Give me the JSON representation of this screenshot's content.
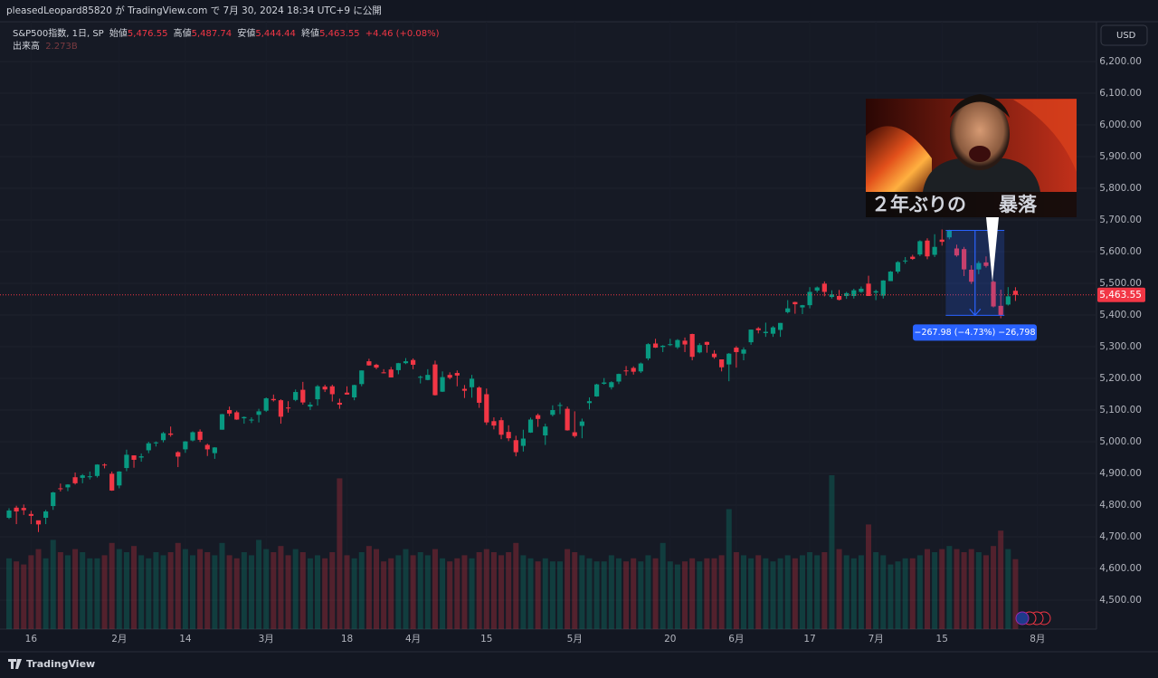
{
  "header": {
    "published": "pleasedLeopard85820 が TradingView.com で 7月 30, 2024 18:34 UTC+9 に公開"
  },
  "legend": {
    "symbol": "S&P500指数, 1日, SP",
    "open_label": "始値",
    "open": "5,476.55",
    "high_label": "高値",
    "high": "5,487.74",
    "low_label": "安値",
    "low": "5,444.44",
    "close_label": "終値",
    "close": "5,463.55",
    "change": "+4.46 (+0.08%)",
    "volume_label": "出来高"
  },
  "currency": "USD",
  "footer": {
    "brand": "TradingView"
  },
  "chart_data": {
    "type": "candlestick",
    "up_color": "#089981",
    "down_color": "#f23645",
    "grid": true,
    "ylim": [
      4408.6,
      6325.7
    ],
    "yticks": [
      {
        "value": 4500,
        "label": "4,500.00"
      },
      {
        "value": 4600,
        "label": "4,600.00"
      },
      {
        "value": 4700,
        "label": "4,700.00"
      },
      {
        "value": 4800,
        "label": "4,800.00"
      },
      {
        "value": 4900,
        "label": "4,900.00"
      },
      {
        "value": 5000,
        "label": "5,000.00"
      },
      {
        "value": 5100,
        "label": "5,100.00"
      },
      {
        "value": 5200,
        "label": "5,200.00"
      },
      {
        "value": 5300,
        "label": "5,300.00"
      },
      {
        "value": 5400,
        "label": "5,400.00"
      },
      {
        "value": 5500,
        "label": "5,500.00"
      },
      {
        "value": 5600,
        "label": "5,600.00"
      },
      {
        "value": 5700,
        "label": "5,700.00"
      },
      {
        "value": 5800,
        "label": "5,800.00"
      },
      {
        "value": 5900,
        "label": "5,900.00"
      },
      {
        "value": 6000,
        "label": "6,000.00"
      },
      {
        "value": 6100,
        "label": "6,100.00"
      },
      {
        "value": 6200,
        "label": "6,200.00"
      }
    ],
    "last_price": {
      "value": 5463.55,
      "label": "5,463.55"
    },
    "categories": [
      null,
      null,
      null,
      "16",
      null,
      null,
      null,
      null,
      null,
      null,
      null,
      null,
      null,
      null,
      null,
      "2月",
      null,
      null,
      null,
      null,
      null,
      null,
      null,
      null,
      "14",
      null,
      null,
      null,
      null,
      null,
      null,
      null,
      null,
      null,
      null,
      "3月",
      null,
      null,
      null,
      null,
      null,
      null,
      null,
      null,
      null,
      null,
      "18",
      null,
      null,
      null,
      null,
      null,
      null,
      null,
      null,
      "4月",
      null,
      null,
      null,
      null,
      null,
      null,
      null,
      null,
      null,
      "15",
      null,
      null,
      null,
      null,
      null,
      null,
      null,
      null,
      null,
      null,
      null,
      "5月",
      null,
      null,
      null,
      null,
      null,
      null,
      null,
      null,
      null,
      null,
      null,
      null,
      "20",
      null,
      null,
      null,
      null,
      null,
      null,
      null,
      null,
      "6月",
      null,
      null,
      null,
      null,
      null,
      null,
      null,
      null,
      null,
      "17",
      null,
      null,
      null,
      null,
      null,
      null,
      null,
      null,
      "7月",
      null,
      null,
      null,
      null,
      null,
      null,
      null,
      null,
      "15",
      null,
      null,
      null,
      null,
      null,
      null,
      null,
      null,
      null,
      null,
      null,
      null,
      "8月"
    ],
    "open": [
      4760,
      4792,
      4791,
      4772,
      4752,
      4760,
      4797,
      4853,
      4856,
      4888,
      4886,
      4888,
      4892,
      4928,
      4899,
      4862,
      4917,
      4957,
      4950,
      4973,
      4996,
      5005,
      5026,
      4967,
      4976,
      5004,
      5032,
      4990,
      4964,
      5038,
      5100,
      5093,
      5074,
      5067,
      5085,
      5098,
      5135,
      5131,
      5108,
      5132,
      5164,
      5111,
      5134,
      5174,
      5175,
      5123,
      5155,
      5140,
      5182,
      5254,
      5243,
      5219,
      5228,
      5226,
      5248,
      5258,
      5204,
      5195,
      5244,
      5158,
      5211,
      5217,
      5167,
      5172,
      5171,
      5150,
      5065,
      5068,
      5031,
      5005,
      4987,
      5029,
      5084,
      5020,
      5085,
      5114,
      5104,
      5030,
      5050,
      5122,
      5143,
      5183,
      5172,
      5190,
      5225,
      5233,
      5222,
      5263,
      5310,
      5299,
      5305,
      5298,
      5319,
      5340,
      5282,
      5315,
      5278,
      5260,
      5244,
      5297,
      5278,
      5314,
      5358,
      5343,
      5341,
      5353,
      5409,
      5441,
      5424,
      5431,
      5477,
      5499,
      5457,
      5460,
      5460,
      5460,
      5473,
      5499,
      5471,
      5461,
      5507,
      5537,
      5571,
      5584,
      5591,
      5635,
      5590,
      5638,
      5645,
      5610,
      5608,
      5543,
      5544,
      5566,
      5505,
      5429,
      5433,
      5476.55,
      null,
      null,
      null
    ],
    "high": [
      4790,
      4798,
      4802,
      4782,
      4745,
      4785,
      4842,
      4868,
      4866,
      4903,
      4898,
      4906,
      4929,
      4932,
      4906,
      4907,
      4975,
      4957,
      4963,
      5000,
      5001,
      5031,
      5048,
      4970,
      5002,
      5033,
      5039,
      4994,
      4983,
      5088,
      5111,
      5098,
      5080,
      5077,
      5104,
      5140,
      5149,
      5134,
      5128,
      5165,
      5189,
      5125,
      5179,
      5180,
      5180,
      5136,
      5175,
      5180,
      5225,
      5262,
      5246,
      5229,
      5236,
      5249,
      5264,
      5263,
      5209,
      5229,
      5256,
      5222,
      5219,
      5225,
      5179,
      5211,
      5175,
      5168,
      5077,
      5077,
      5052,
      5019,
      5038,
      5076,
      5089,
      5057,
      5115,
      5124,
      5111,
      5096,
      5073,
      5140,
      5183,
      5201,
      5191,
      5215,
      5239,
      5238,
      5250,
      5311,
      5325,
      5305,
      5325,
      5324,
      5329,
      5341,
      5311,
      5316,
      5289,
      5260,
      5280,
      5302,
      5298,
      5354,
      5362,
      5376,
      5365,
      5375,
      5447,
      5442,
      5432,
      5488,
      5490,
      5506,
      5478,
      5479,
      5473,
      5483,
      5490,
      5524,
      5480,
      5510,
      5539,
      5570,
      5583,
      5590,
      5636,
      5642,
      5655,
      5670,
      5669,
      5622,
      5615,
      5557,
      5570,
      5585,
      5508,
      5480,
      5488,
      5487.74,
      null,
      null,
      null
    ],
    "low": [
      4756,
      4740,
      4769,
      4740,
      4715,
      4740,
      4785,
      4843,
      4844,
      4865,
      4869,
      4881,
      4887,
      4916,
      4845,
      4853,
      4907,
      4918,
      4937,
      4964,
      4985,
      4998,
      5016,
      4920,
      4965,
      5001,
      4999,
      4955,
      4946,
      5038,
      5081,
      5069,
      5057,
      5059,
      5061,
      5094,
      5127,
      5057,
      5092,
      5128,
      5117,
      5100,
      5114,
      5157,
      5127,
      5104,
      5149,
      5131,
      5175,
      5240,
      5229,
      5216,
      5203,
      5213,
      5245,
      5229,
      5184,
      5194,
      5146,
      5157,
      5197,
      5175,
      5138,
      5139,
      5107,
      5053,
      5039,
      5008,
      5002,
      4954,
      4969,
      5028,
      5047,
      4990,
      5080,
      5087,
      5035,
      5013,
      5011,
      5102,
      5142,
      5180,
      5165,
      5182,
      5209,
      5212,
      5217,
      5257,
      5296,
      5283,
      5302,
      5293,
      5283,
      5257,
      5279,
      5281,
      5262,
      5222,
      5191,
      5234,
      5257,
      5306,
      5342,
      5331,
      5331,
      5331,
      5405,
      5404,
      5403,
      5421,
      5471,
      5459,
      5452,
      5446,
      5451,
      5452,
      5470,
      5460,
      5447,
      5452,
      5507,
      5531,
      5562,
      5574,
      5586,
      5576,
      5583,
      5619,
      5639,
      5584,
      5523,
      5498,
      5529,
      5550,
      5424,
      5390,
      5430,
      5444.44,
      null,
      null,
      null
    ],
    "close": [
      4783,
      4780,
      4784,
      4766,
      4739,
      4780,
      4840,
      4851,
      4865,
      4869,
      4894,
      4891,
      4928,
      4925,
      4846,
      4906,
      4959,
      4943,
      4954,
      4995,
      4998,
      5027,
      5022,
      4953,
      5001,
      5030,
      5006,
      4976,
      4982,
      5087,
      5089,
      5070,
      5078,
      5070,
      5096,
      5137,
      5131,
      5079,
      5105,
      5157,
      5124,
      5117,
      5175,
      5165,
      5150,
      5117,
      5149,
      5179,
      5225,
      5241,
      5234,
      5218,
      5203,
      5248,
      5254,
      5243,
      5205,
      5211,
      5147,
      5204,
      5202,
      5209,
      5161,
      5199,
      5123,
      5061,
      5051,
      5022,
      5011,
      4967,
      5010,
      5070,
      5072,
      5048,
      5100,
      5116,
      5036,
      5018,
      5064,
      5128,
      5181,
      5187,
      5188,
      5214,
      5223,
      5221,
      5247,
      5308,
      5297,
      5303,
      5308,
      5321,
      5307,
      5268,
      5305,
      5306,
      5267,
      5235,
      5278,
      5283,
      5291,
      5354,
      5352,
      5347,
      5361,
      5375,
      5421,
      5434,
      5431,
      5473,
      5487,
      5473,
      5465,
      5448,
      5469,
      5478,
      5483,
      5460,
      5475,
      5509,
      5537,
      5567,
      5572,
      5577,
      5633,
      5585,
      5615,
      5631,
      5667,
      5588,
      5544,
      5505,
      5564,
      5555,
      5427,
      5399,
      5459,
      5463.55,
      null,
      null,
      null
    ],
    "volume": [
      2.3,
      2.2,
      2.1,
      2.4,
      2.6,
      2.3,
      2.9,
      2.5,
      2.4,
      2.6,
      2.5,
      2.3,
      2.3,
      2.4,
      2.8,
      2.6,
      2.5,
      2.7,
      2.4,
      2.3,
      2.5,
      2.4,
      2.5,
      2.8,
      2.6,
      2.4,
      2.6,
      2.5,
      2.4,
      2.8,
      2.4,
      2.3,
      2.5,
      2.4,
      2.9,
      2.6,
      2.5,
      2.7,
      2.4,
      2.6,
      2.5,
      2.3,
      2.4,
      2.3,
      2.5,
      4.9,
      2.4,
      2.3,
      2.5,
      2.7,
      2.6,
      2.2,
      2.3,
      2.4,
      2.6,
      2.4,
      2.5,
      2.4,
      2.6,
      2.3,
      2.2,
      2.3,
      2.4,
      2.3,
      2.5,
      2.6,
      2.5,
      2.4,
      2.5,
      2.8,
      2.4,
      2.3,
      2.2,
      2.3,
      2.2,
      2.2,
      2.6,
      2.5,
      2.4,
      2.3,
      2.2,
      2.2,
      2.4,
      2.3,
      2.2,
      2.3,
      2.2,
      2.4,
      2.3,
      2.8,
      2.2,
      2.1,
      2.2,
      2.3,
      2.2,
      2.3,
      2.3,
      2.4,
      3.9,
      2.5,
      2.4,
      2.3,
      2.4,
      2.3,
      2.2,
      2.3,
      2.4,
      2.3,
      2.4,
      2.5,
      2.4,
      2.5,
      5.0,
      2.6,
      2.4,
      2.3,
      2.4,
      3.4,
      2.5,
      2.4,
      2.1,
      2.2,
      2.3,
      2.3,
      2.4,
      2.6,
      2.5,
      2.6,
      2.7,
      2.6,
      2.5,
      2.6,
      2.5,
      2.4,
      2.7,
      3.2,
      2.6,
      2.273,
      null,
      null,
      null
    ],
    "volume_last_label": "2.273B",
    "measure_label": "−267.98 (−4.73%) −26,798",
    "thumbnail": {
      "text": "２年ぶりの",
      "highlight": "暴落"
    }
  }
}
